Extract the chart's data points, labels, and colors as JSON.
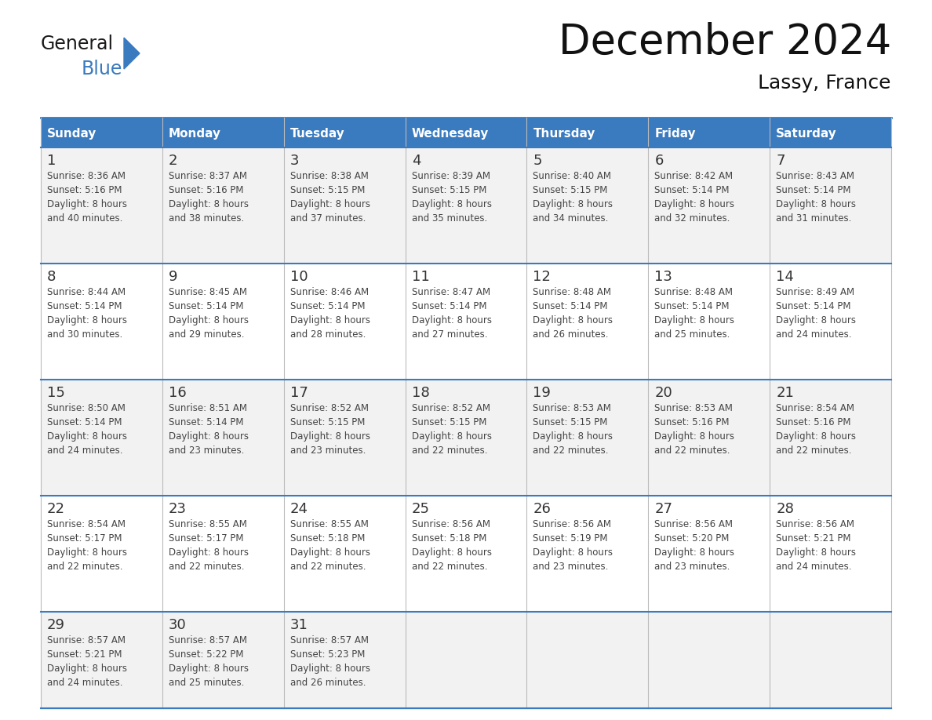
{
  "title": "December 2024",
  "subtitle": "Lassy, France",
  "days_of_week": [
    "Sunday",
    "Monday",
    "Tuesday",
    "Wednesday",
    "Thursday",
    "Friday",
    "Saturday"
  ],
  "header_bg": "#3a7abf",
  "header_text_color": "#ffffff",
  "cell_bg_even": "#f2f2f2",
  "cell_bg_odd": "#ffffff",
  "row_separator_color": "#3a7abf",
  "col_separator_color": "#cccccc",
  "day_num_color": "#333333",
  "text_color": "#444444",
  "title_color": "#111111",
  "logo_black": "#1a1a1a",
  "logo_blue": "#3a7abf",
  "calendar_data": [
    [
      {
        "day": 1,
        "sunrise": "8:36 AM",
        "sunset": "5:16 PM",
        "daylight": "8 hours and 40 minutes."
      },
      {
        "day": 2,
        "sunrise": "8:37 AM",
        "sunset": "5:16 PM",
        "daylight": "8 hours and 38 minutes."
      },
      {
        "day": 3,
        "sunrise": "8:38 AM",
        "sunset": "5:15 PM",
        "daylight": "8 hours and 37 minutes."
      },
      {
        "day": 4,
        "sunrise": "8:39 AM",
        "sunset": "5:15 PM",
        "daylight": "8 hours and 35 minutes."
      },
      {
        "day": 5,
        "sunrise": "8:40 AM",
        "sunset": "5:15 PM",
        "daylight": "8 hours and 34 minutes."
      },
      {
        "day": 6,
        "sunrise": "8:42 AM",
        "sunset": "5:14 PM",
        "daylight": "8 hours and 32 minutes."
      },
      {
        "day": 7,
        "sunrise": "8:43 AM",
        "sunset": "5:14 PM",
        "daylight": "8 hours and 31 minutes."
      }
    ],
    [
      {
        "day": 8,
        "sunrise": "8:44 AM",
        "sunset": "5:14 PM",
        "daylight": "8 hours and 30 minutes."
      },
      {
        "day": 9,
        "sunrise": "8:45 AM",
        "sunset": "5:14 PM",
        "daylight": "8 hours and 29 minutes."
      },
      {
        "day": 10,
        "sunrise": "8:46 AM",
        "sunset": "5:14 PM",
        "daylight": "8 hours and 28 minutes."
      },
      {
        "day": 11,
        "sunrise": "8:47 AM",
        "sunset": "5:14 PM",
        "daylight": "8 hours and 27 minutes."
      },
      {
        "day": 12,
        "sunrise": "8:48 AM",
        "sunset": "5:14 PM",
        "daylight": "8 hours and 26 minutes."
      },
      {
        "day": 13,
        "sunrise": "8:48 AM",
        "sunset": "5:14 PM",
        "daylight": "8 hours and 25 minutes."
      },
      {
        "day": 14,
        "sunrise": "8:49 AM",
        "sunset": "5:14 PM",
        "daylight": "8 hours and 24 minutes."
      }
    ],
    [
      {
        "day": 15,
        "sunrise": "8:50 AM",
        "sunset": "5:14 PM",
        "daylight": "8 hours and 24 minutes."
      },
      {
        "day": 16,
        "sunrise": "8:51 AM",
        "sunset": "5:14 PM",
        "daylight": "8 hours and 23 minutes."
      },
      {
        "day": 17,
        "sunrise": "8:52 AM",
        "sunset": "5:15 PM",
        "daylight": "8 hours and 23 minutes."
      },
      {
        "day": 18,
        "sunrise": "8:52 AM",
        "sunset": "5:15 PM",
        "daylight": "8 hours and 22 minutes."
      },
      {
        "day": 19,
        "sunrise": "8:53 AM",
        "sunset": "5:15 PM",
        "daylight": "8 hours and 22 minutes."
      },
      {
        "day": 20,
        "sunrise": "8:53 AM",
        "sunset": "5:16 PM",
        "daylight": "8 hours and 22 minutes."
      },
      {
        "day": 21,
        "sunrise": "8:54 AM",
        "sunset": "5:16 PM",
        "daylight": "8 hours and 22 minutes."
      }
    ],
    [
      {
        "day": 22,
        "sunrise": "8:54 AM",
        "sunset": "5:17 PM",
        "daylight": "8 hours and 22 minutes."
      },
      {
        "day": 23,
        "sunrise": "8:55 AM",
        "sunset": "5:17 PM",
        "daylight": "8 hours and 22 minutes."
      },
      {
        "day": 24,
        "sunrise": "8:55 AM",
        "sunset": "5:18 PM",
        "daylight": "8 hours and 22 minutes."
      },
      {
        "day": 25,
        "sunrise": "8:56 AM",
        "sunset": "5:18 PM",
        "daylight": "8 hours and 22 minutes."
      },
      {
        "day": 26,
        "sunrise": "8:56 AM",
        "sunset": "5:19 PM",
        "daylight": "8 hours and 23 minutes."
      },
      {
        "day": 27,
        "sunrise": "8:56 AM",
        "sunset": "5:20 PM",
        "daylight": "8 hours and 23 minutes."
      },
      {
        "day": 28,
        "sunrise": "8:56 AM",
        "sunset": "5:21 PM",
        "daylight": "8 hours and 24 minutes."
      }
    ],
    [
      {
        "day": 29,
        "sunrise": "8:57 AM",
        "sunset": "5:21 PM",
        "daylight": "8 hours and 24 minutes."
      },
      {
        "day": 30,
        "sunrise": "8:57 AM",
        "sunset": "5:22 PM",
        "daylight": "8 hours and 25 minutes."
      },
      {
        "day": 31,
        "sunrise": "8:57 AM",
        "sunset": "5:23 PM",
        "daylight": "8 hours and 26 minutes."
      },
      null,
      null,
      null,
      null
    ]
  ]
}
